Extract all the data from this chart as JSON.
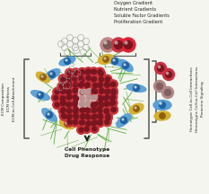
{
  "bg_color": "#f5f5f0",
  "title_lines": [
    "Oxygen Gradient",
    "Nutrient Gradients",
    "Soluble Factor Gradients",
    "Proliferation Gradient"
  ],
  "left_labels": [
    "ECM Composition",
    "ECM Stiffness",
    "ECM-to-Cell Attachment"
  ],
  "right_labels": [
    "Homotypic Cell-to-Cell Interactions",
    "Heterotypic Cell-to-Cell Interactions",
    "Paracrine Signaling"
  ],
  "bottom_label": [
    "Cell Phenotype",
    "Drug Response"
  ],
  "main_tumor_color": "#c8323a",
  "tumor_dark_color": "#7a1520",
  "necrotic_color": "#dbb0b0",
  "outer_cell_blue": "#5a9fd4",
  "outer_cell_yellow": "#d4b030",
  "ecm_color": "#5aaa3c",
  "legend_red1": "#cc3040",
  "legend_red2": "#cc3040",
  "legend_purple": "#a07080",
  "legend_blue": "#5a9fd4",
  "legend_yellow": "#d4b030",
  "bracket_color": "#555555",
  "text_color": "#222222"
}
